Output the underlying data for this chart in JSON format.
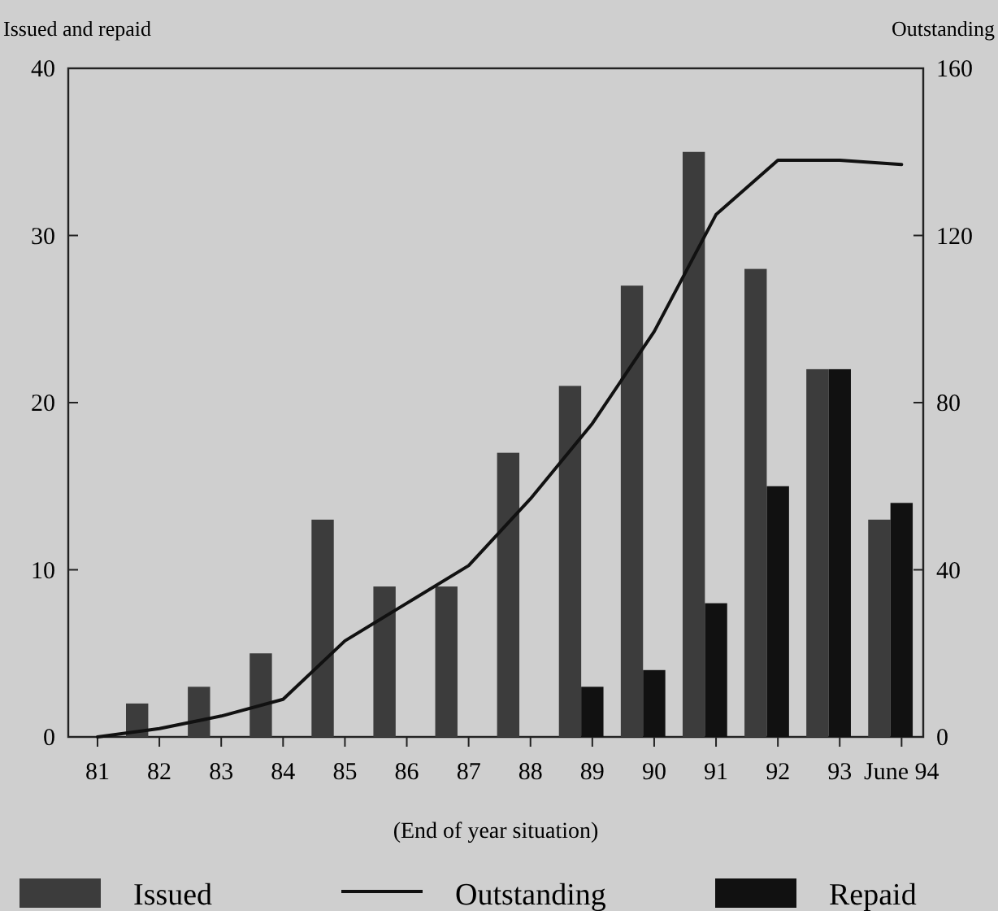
{
  "chart_data": {
    "type": "bar",
    "xlabel": "(End of year situation)",
    "ylabel": "Issued and repaid",
    "y2label": "Outstanding",
    "categories": [
      "81",
      "82",
      "83",
      "84",
      "85",
      "86",
      "87",
      "88",
      "89",
      "90",
      "91",
      "92",
      "93",
      "June 94"
    ],
    "series": [
      {
        "name": "Issued",
        "color": "#3c3c3c",
        "values": [
          null,
          2,
          3,
          5,
          13,
          9,
          9,
          17,
          21,
          27,
          35,
          28,
          22,
          13
        ]
      },
      {
        "name": "Outstanding",
        "type": "line",
        "axis": "y2",
        "color": "#111111",
        "values": [
          0,
          2,
          5,
          9,
          23,
          32,
          41,
          57,
          75,
          97,
          125,
          138,
          138,
          137
        ]
      },
      {
        "name": "Repaid",
        "color": "#111111",
        "values": [
          null,
          null,
          null,
          null,
          null,
          null,
          null,
          null,
          3,
          4,
          8,
          15,
          22,
          14
        ]
      }
    ],
    "ylim": [
      0,
      40
    ],
    "yticks": [
      0,
      10,
      20,
      30,
      40
    ],
    "y2lim": [
      0,
      160
    ],
    "y2ticks": [
      0,
      40,
      80,
      120,
      160
    ],
    "legend": "bottom"
  }
}
